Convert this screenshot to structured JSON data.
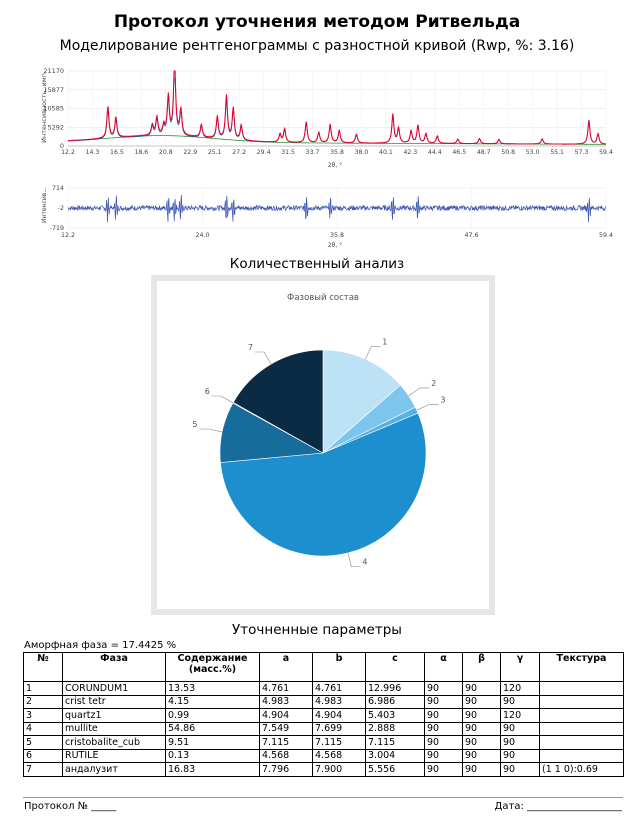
{
  "header": {
    "title": "Протокол уточнения методом Ритвельда",
    "subtitle": "Моделирование рентгенограммы с разностной кривой (Rwp, %: 3.16)"
  },
  "xrd_chart": {
    "ylabel": "Интенсивность, имп",
    "xlabel": "2θ, °",
    "y_ticks": [
      "21170",
      "15877",
      "10585",
      "5292",
      "0"
    ],
    "x_ticks": [
      "12.2",
      "14.3",
      "16.5",
      "18.6",
      "20.8",
      "22.9",
      "25.1",
      "27.2",
      "29.4",
      "31.5",
      "33.7",
      "35.8",
      "38.0",
      "40.1",
      "42.3",
      "44.4",
      "46.5",
      "48.7",
      "50.8",
      "53.0",
      "55.1",
      "57.3",
      "59.4"
    ],
    "xlim": [
      12.2,
      59.4
    ],
    "ylim": [
      0,
      21170
    ],
    "colors": {
      "observed": "#e8002d",
      "calculated": "#1f4fa6",
      "background": "#2f8f2f"
    }
  },
  "diff_chart": {
    "ylabel": "Интенсив...",
    "xlabel": "2θ, °",
    "y_ticks": [
      "714",
      "-2",
      "-719"
    ],
    "x_ticks": [
      "12.2",
      "24.0",
      "35.8",
      "47.6",
      "59.4"
    ],
    "color": "#3b55b5"
  },
  "quant_title": "Количественный анализ",
  "chart_data": {
    "type": "pie",
    "title": "Фазовый состав",
    "labels": [
      "1",
      "2",
      "3",
      "4",
      "5",
      "6",
      "7"
    ],
    "phases": [
      "CORUNDUM1",
      "crist tetr",
      "quartz1",
      "mullite",
      "cristobalite_cub",
      "RUTILE",
      "андалузит"
    ],
    "values": [
      13.53,
      4.15,
      0.99,
      54.86,
      9.51,
      0.13,
      16.83
    ],
    "colors": [
      "#bde1f5",
      "#7cc6ee",
      "#56b0e3",
      "#1d8fcf",
      "#166d9c",
      "#0f4f74",
      "#0b2b44"
    ]
  },
  "params": {
    "title": "Уточненные параметры",
    "amorphous": "Аморфная фаза = 17.4425 %",
    "headers": [
      "№",
      "Фаза",
      "Содержание (масс.%)",
      "a",
      "b",
      "c",
      "α",
      "β",
      "γ",
      "Текстура"
    ],
    "rows": [
      [
        "1",
        "CORUNDUM1",
        "13.53",
        "4.761",
        "4.761",
        "12.996",
        "90",
        "90",
        "120",
        ""
      ],
      [
        "2",
        "crist tetr",
        "4.15",
        "4.983",
        "4.983",
        "6.986",
        "90",
        "90",
        "90",
        ""
      ],
      [
        "3",
        "quartz1",
        "0.99",
        "4.904",
        "4.904",
        "5.403",
        "90",
        "90",
        "120",
        ""
      ],
      [
        "4",
        "mullite",
        "54.86",
        "7.549",
        "7.699",
        "2.888",
        "90",
        "90",
        "90",
        ""
      ],
      [
        "5",
        "cristobalite_cub",
        "9.51",
        "7.115",
        "7.115",
        "7.115",
        "90",
        "90",
        "90",
        ""
      ],
      [
        "6",
        "RUTILE",
        "0.13",
        "4.568",
        "4.568",
        "3.004",
        "90",
        "90",
        "90",
        ""
      ],
      [
        "7",
        "андалузит",
        "16.83",
        "7.796",
        "7.900",
        "5.556",
        "90",
        "90",
        "90",
        "(1 1 0):0.69"
      ]
    ]
  },
  "footer": {
    "protocol": "Протокол № _____",
    "date": "Дата: ___________________"
  }
}
